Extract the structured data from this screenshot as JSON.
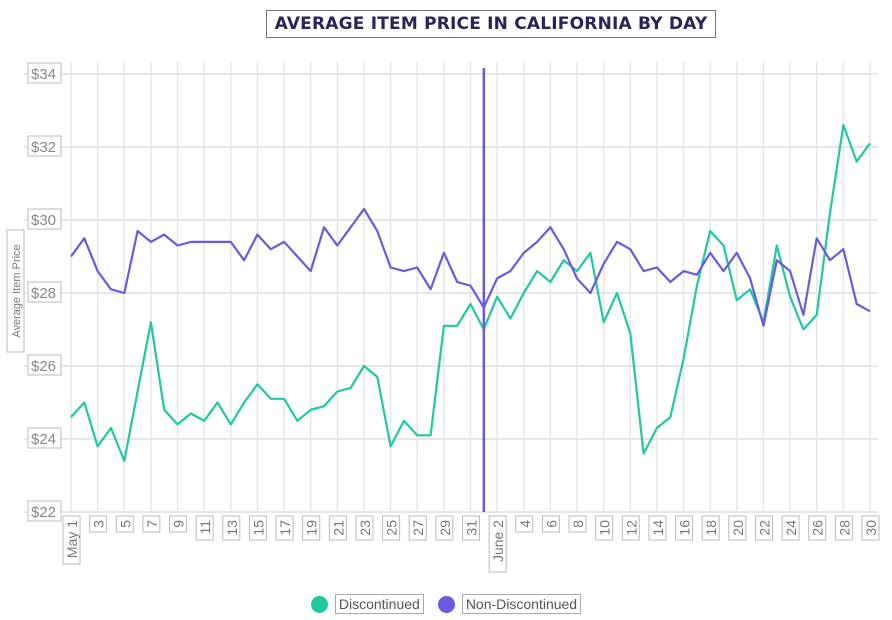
{
  "chart_data": {
    "type": "line",
    "title": "AVERAGE ITEM PRICE IN CALIFORNIA BY DAY",
    "ylabel": "Average Item Price",
    "xlabel": "",
    "ylim": [
      22,
      34
    ],
    "yticks": [
      22,
      24,
      26,
      28,
      30,
      32,
      34
    ],
    "ytick_labels": [
      "$22",
      "$24",
      "$26",
      "$28",
      "$30",
      "$32",
      "$34"
    ],
    "x_tick_labels": [
      "May 1",
      "3",
      "5",
      "7",
      "9",
      "11",
      "13",
      "15",
      "17",
      "19",
      "21",
      "23",
      "25",
      "27",
      "29",
      "31",
      "June 2",
      "4",
      "6",
      "8",
      "10",
      "12",
      "14",
      "16",
      "18",
      "20",
      "22",
      "24",
      "26",
      "28",
      "30"
    ],
    "marker_line_day_index": 31,
    "series": [
      {
        "name": "Discontinued",
        "color": "#1ec9a4",
        "values": [
          24.6,
          25.0,
          23.8,
          24.3,
          23.4,
          25.3,
          27.2,
          24.8,
          24.4,
          24.7,
          24.5,
          25.0,
          24.4,
          25.0,
          25.5,
          25.1,
          25.1,
          24.5,
          24.8,
          24.9,
          25.3,
          25.4,
          26.0,
          25.7,
          23.8,
          24.5,
          24.1,
          24.1,
          27.1,
          27.1,
          27.7,
          27.0,
          27.9,
          27.3,
          28.0,
          28.6,
          28.3,
          28.9,
          28.6,
          29.1,
          27.2,
          28.0,
          26.9,
          23.6,
          24.3,
          24.6,
          26.2,
          28.2,
          29.7,
          29.3,
          27.8,
          28.1,
          27.2,
          29.3,
          27.9,
          27.0,
          27.4,
          30.2,
          32.6,
          31.6,
          32.1
        ]
      },
      {
        "name": "Non-Discontinued",
        "color": "#6a5ae0",
        "values": [
          29.0,
          29.5,
          28.6,
          28.1,
          28.0,
          29.7,
          29.4,
          29.6,
          29.3,
          29.4,
          29.4,
          29.4,
          29.4,
          28.9,
          29.6,
          29.2,
          29.4,
          29.0,
          28.6,
          29.8,
          29.3,
          29.8,
          30.3,
          29.7,
          28.7,
          28.6,
          28.7,
          28.1,
          29.1,
          28.3,
          28.2,
          27.6,
          28.4,
          28.6,
          29.1,
          29.4,
          29.8,
          29.2,
          28.4,
          28.0,
          28.8,
          29.4,
          29.2,
          28.6,
          28.7,
          28.3,
          28.6,
          28.5,
          29.1,
          28.6,
          29.1,
          28.4,
          27.1,
          28.9,
          28.6,
          27.4,
          29.5,
          28.9,
          29.2,
          27.7,
          27.5
        ]
      }
    ]
  }
}
